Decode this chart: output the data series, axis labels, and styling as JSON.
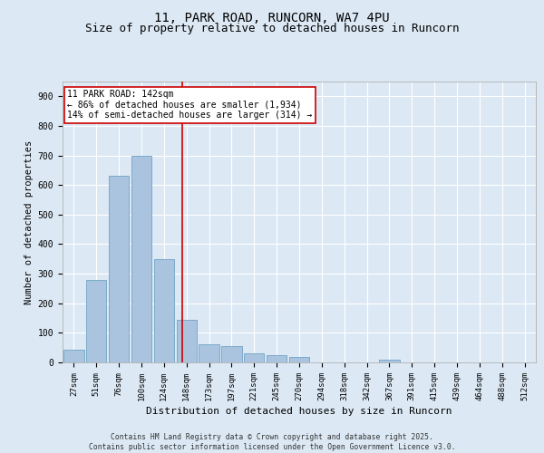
{
  "title": "11, PARK ROAD, RUNCORN, WA7 4PU",
  "subtitle": "Size of property relative to detached houses in Runcorn",
  "xlabel": "Distribution of detached houses by size in Runcorn",
  "ylabel": "Number of detached properties",
  "bar_labels": [
    "27sqm",
    "51sqm",
    "76sqm",
    "100sqm",
    "124sqm",
    "148sqm",
    "173sqm",
    "197sqm",
    "221sqm",
    "245sqm",
    "270sqm",
    "294sqm",
    "318sqm",
    "342sqm",
    "367sqm",
    "391sqm",
    "415sqm",
    "439sqm",
    "464sqm",
    "488sqm",
    "512sqm"
  ],
  "bar_heights": [
    42,
    280,
    630,
    700,
    350,
    145,
    60,
    55,
    30,
    25,
    18,
    0,
    0,
    0,
    8,
    0,
    0,
    0,
    0,
    0,
    0
  ],
  "bar_color": "#aac4e0",
  "bar_edgecolor": "#7aaac8",
  "background_color": "#dce9f5",
  "plot_bg_color": "#dce9f5",
  "grid_color": "#ffffff",
  "vline_x_index": 4.83,
  "vline_color": "#cc0000",
  "annotation_text": "11 PARK ROAD: 142sqm\n← 86% of detached houses are smaller (1,934)\n14% of semi-detached houses are larger (314) →",
  "annotation_box_color": "#cc0000",
  "ylim": [
    0,
    950
  ],
  "yticks": [
    0,
    100,
    200,
    300,
    400,
    500,
    600,
    700,
    800,
    900
  ],
  "footer_text": "Contains HM Land Registry data © Crown copyright and database right 2025.\nContains public sector information licensed under the Open Government Licence v3.0.",
  "title_fontsize": 10,
  "subtitle_fontsize": 9,
  "axis_label_fontsize": 8,
  "tick_fontsize": 6.5,
  "annotation_fontsize": 7,
  "ylabel_fontsize": 7.5
}
